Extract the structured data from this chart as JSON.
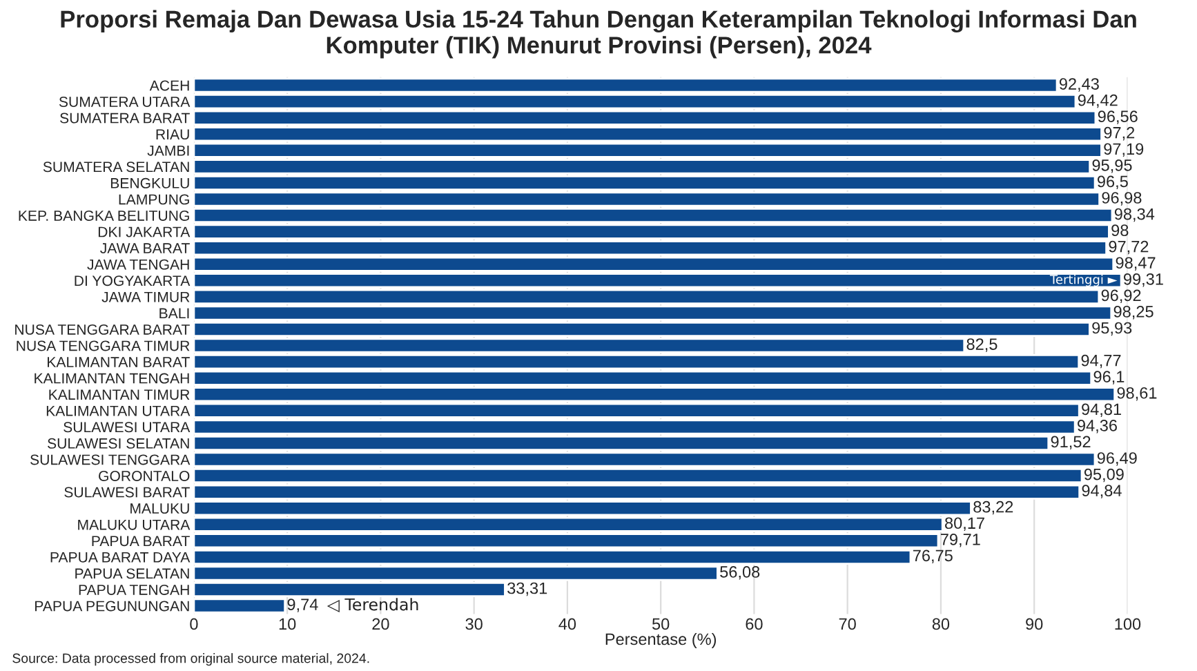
{
  "chart_data": {
    "type": "bar",
    "orientation": "horizontal",
    "title": "Proporsi Remaja Dan Dewasa Usia 15-24 Tahun Dengan Keterampilan Teknologi Informasi Dan Komputer (TIK) Menurut Provinsi (Persen), 2024",
    "xlabel": "Persentase (%)",
    "categories": [
      "ACEH",
      "SUMATERA UTARA",
      "SUMATERA BARAT",
      "RIAU",
      "JAMBI",
      "SUMATERA SELATAN",
      "BENGKULU",
      "LAMPUNG",
      "KEP. BANGKA BELITUNG",
      "DKI JAKARTA",
      "JAWA BARAT",
      "JAWA TENGAH",
      "DI YOGYAKARTA",
      "JAWA TIMUR",
      "BALI",
      "NUSA TENGGARA BARAT",
      "NUSA TENGGARA TIMUR",
      "KALIMANTAN BARAT",
      "KALIMANTAN TENGAH",
      "KALIMANTAN TIMUR",
      "KALIMANTAN UTARA",
      "SULAWESI UTARA",
      "SULAWESI SELATAN",
      "SULAWESI TENGGARA",
      "GORONTALO",
      "SULAWESI BARAT",
      "MALUKU",
      "MALUKU UTARA",
      "PAPUA BARAT",
      "PAPUA BARAT DAYA",
      "PAPUA SELATAN",
      "PAPUA TENGAH",
      "PAPUA PEGUNUNGAN"
    ],
    "values": [
      92.43,
      94.42,
      96.56,
      97.2,
      97.19,
      95.95,
      96.5,
      96.98,
      98.34,
      98,
      97.72,
      98.47,
      99.31,
      96.92,
      98.25,
      95.93,
      82.5,
      94.77,
      96.1,
      98.61,
      94.81,
      94.36,
      91.52,
      96.49,
      95.09,
      94.84,
      83.22,
      80.17,
      79.71,
      76.75,
      56.08,
      33.31,
      9.74
    ],
    "value_labels": [
      "92,43",
      "94,42",
      "96,56",
      "97,2",
      "97,19",
      "95,95",
      "96,5",
      "96,98",
      "98,34",
      "98",
      "97,72",
      "98,47",
      "99,31",
      "96,92",
      "98,25",
      "95,93",
      "82,5",
      "94,77",
      "96,1",
      "98,61",
      "94,81",
      "94,36",
      "91,52",
      "96,49",
      "95,09",
      "94,84",
      "83,22",
      "80,17",
      "79,71",
      "76,75",
      "56,08",
      "33,31",
      "9,74"
    ],
    "color": "#0d4a8f",
    "xlim": [
      0,
      100
    ],
    "xticks": [
      0,
      10,
      20,
      30,
      40,
      50,
      60,
      70,
      80,
      90,
      100
    ],
    "grid": "x",
    "annotations": [
      {
        "text": "Tertinggi ►",
        "x": 99.31,
        "y": "DI YOGYAKARTA"
      },
      {
        "text": "◁ Terendah",
        "x": 9.74,
        "y": "PAPUA PEGUNUNGAN"
      },
      "Source: Data processed from original source material, 2024."
    ]
  }
}
